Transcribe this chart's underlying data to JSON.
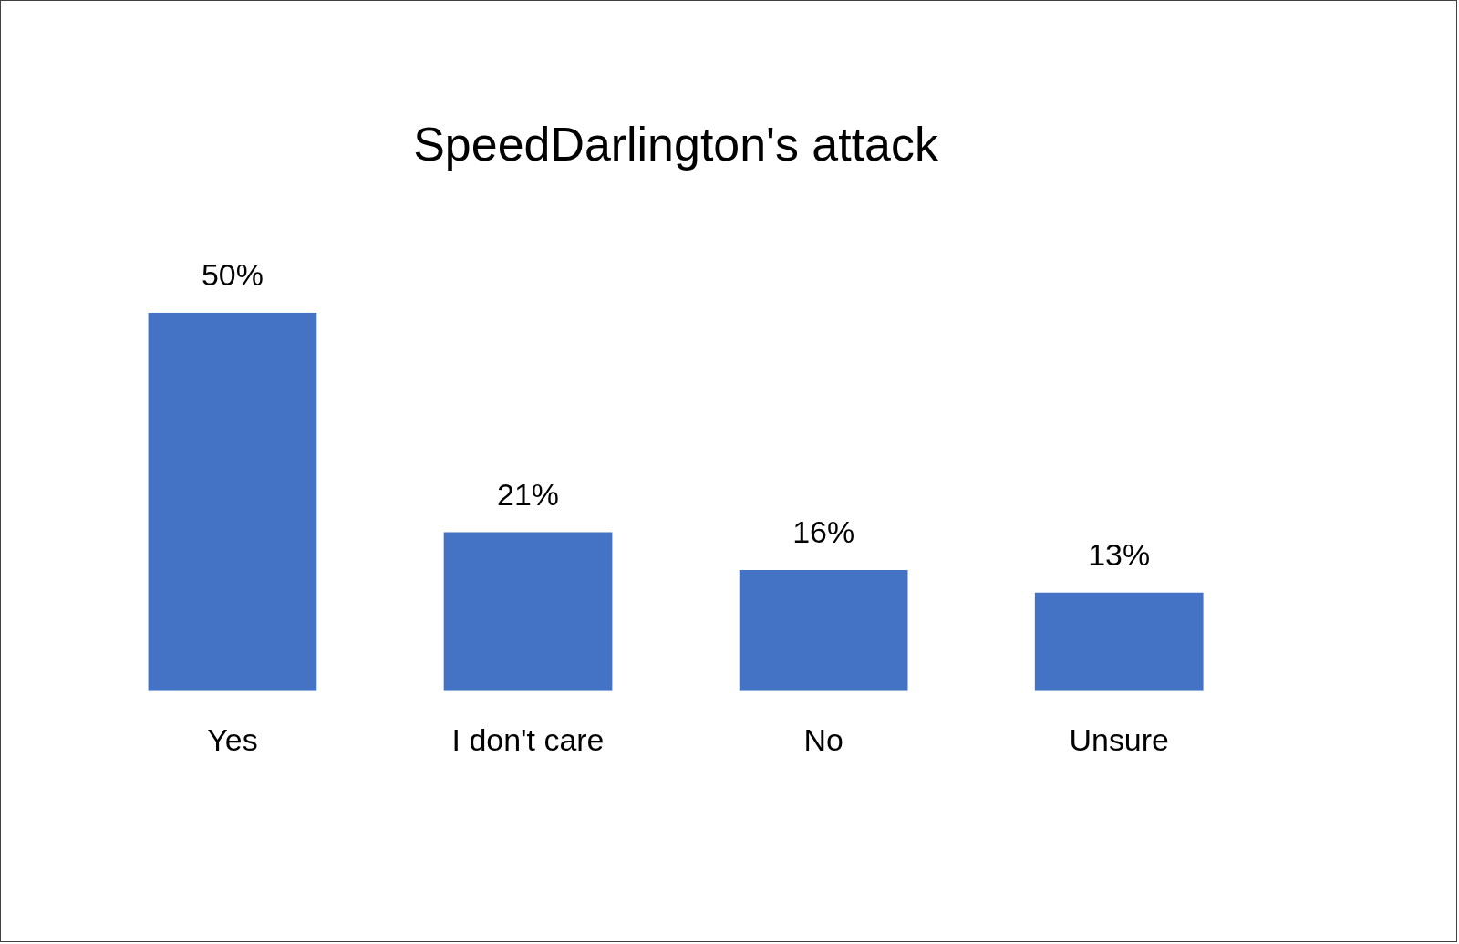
{
  "chart_data": {
    "type": "bar",
    "title": "SpeedDarlington's attack",
    "categories": [
      "Yes",
      "I don't care",
      "No",
      "Unsure"
    ],
    "values": [
      50,
      21,
      16,
      13
    ],
    "value_labels": [
      "50%",
      "21%",
      "16%",
      "13%"
    ],
    "color": "#4472c4"
  }
}
